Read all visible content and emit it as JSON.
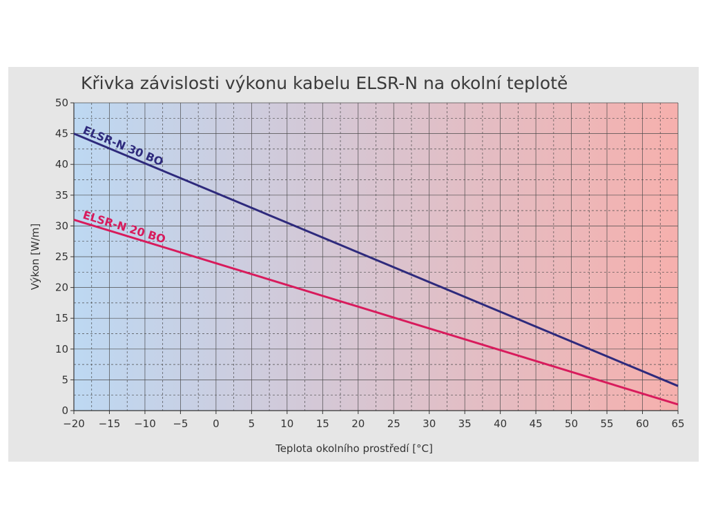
{
  "chart_data": {
    "type": "line",
    "title": "Křivka závislosti výkonu kabelu ELSR-N na okolní teplotě",
    "xlabel": "Teplota okolního prostředí [°C]",
    "ylabel": "Výkon [W/m]",
    "xlim": [
      -20,
      65
    ],
    "ylim": [
      0,
      50
    ],
    "x_ticks": [
      -20,
      -15,
      -10,
      -5,
      0,
      5,
      10,
      15,
      20,
      25,
      30,
      35,
      40,
      45,
      50,
      55,
      60,
      65
    ],
    "x_tick_labels": [
      "−20",
      "−15",
      "−10",
      "−5",
      "0",
      "5",
      "10",
      "15",
      "20",
      "25",
      "30",
      "35",
      "40",
      "45",
      "50",
      "55",
      "60",
      "65"
    ],
    "y_ticks": [
      0,
      5,
      10,
      15,
      20,
      25,
      30,
      35,
      40,
      45,
      50
    ],
    "y_tick_labels": [
      "0",
      "5",
      "10",
      "15",
      "20",
      "25",
      "30",
      "35",
      "40",
      "45",
      "50"
    ],
    "grid": true,
    "background_gradient": [
      "#bdd8f2",
      "#f6b0ad"
    ],
    "series": [
      {
        "name": "ELSR-N 30 BO",
        "color": "#2e2a7c",
        "x": [
          -20,
          65
        ],
        "y": [
          45,
          4
        ]
      },
      {
        "name": "ELSR-N 20 BO",
        "color": "#d81b5c",
        "x": [
          -20,
          65
        ],
        "y": [
          31,
          1
        ]
      }
    ]
  }
}
